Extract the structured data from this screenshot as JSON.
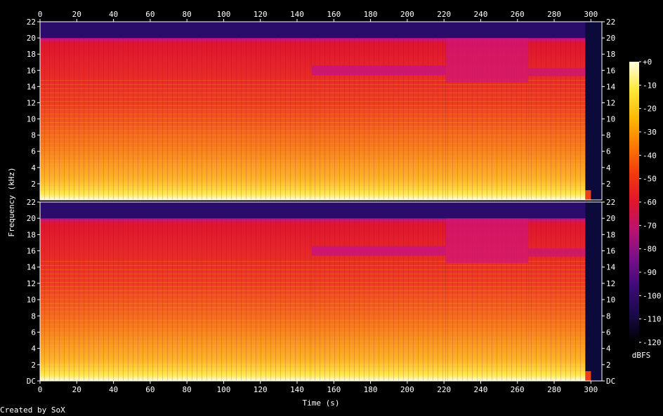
{
  "chart_data": {
    "type": "heatmap",
    "xlabel": "Time (s)",
    "ylabel": "Frequency (kHz)",
    "x_ticks": [
      "0",
      "20",
      "40",
      "60",
      "80",
      "100",
      "120",
      "140",
      "160",
      "180",
      "200",
      "220",
      "240",
      "260",
      "280",
      "300"
    ],
    "xlim": [
      0,
      306
    ],
    "ylim": [
      0,
      22
    ],
    "channels": [
      {
        "y_ticks": [
          "22",
          "20",
          "18",
          "16",
          "14",
          "12",
          "10",
          "8",
          "6",
          "4",
          "2"
        ]
      },
      {
        "y_ticks": [
          "22",
          "20",
          "18",
          "16",
          "14",
          "12",
          "10",
          "8",
          "6",
          "4",
          "2",
          "DC"
        ]
      }
    ],
    "colorbar": {
      "label": "dBFS",
      "ticks": [
        "+0",
        "-10",
        "-20",
        "-30",
        "-40",
        "-50",
        "-60",
        "-70",
        "-80",
        "-90",
        "-100",
        "-110",
        "-120"
      ],
      "range": [
        -120,
        0
      ],
      "stops": [
        "#000000",
        "#1a0a4a",
        "#3d0b7a",
        "#7a0f8a",
        "#b8146f",
        "#e0142e",
        "#f23a0c",
        "#fb7a06",
        "#fdb805",
        "#fde93a",
        "#fffde0"
      ]
    },
    "segments_seconds": [
      {
        "start": 0,
        "end": 148,
        "description": "high-energy to 20 kHz"
      },
      {
        "start": 148,
        "end": 221,
        "description": "notches near 16 kHz"
      },
      {
        "start": 221,
        "end": 266,
        "description": "reduced upper band"
      },
      {
        "start": 266,
        "end": 297,
        "description": "band to 20 kHz"
      },
      {
        "start": 297,
        "end": 306,
        "description": "fade to silence"
      }
    ]
  },
  "footer": {
    "credit": "Created by SoX"
  }
}
